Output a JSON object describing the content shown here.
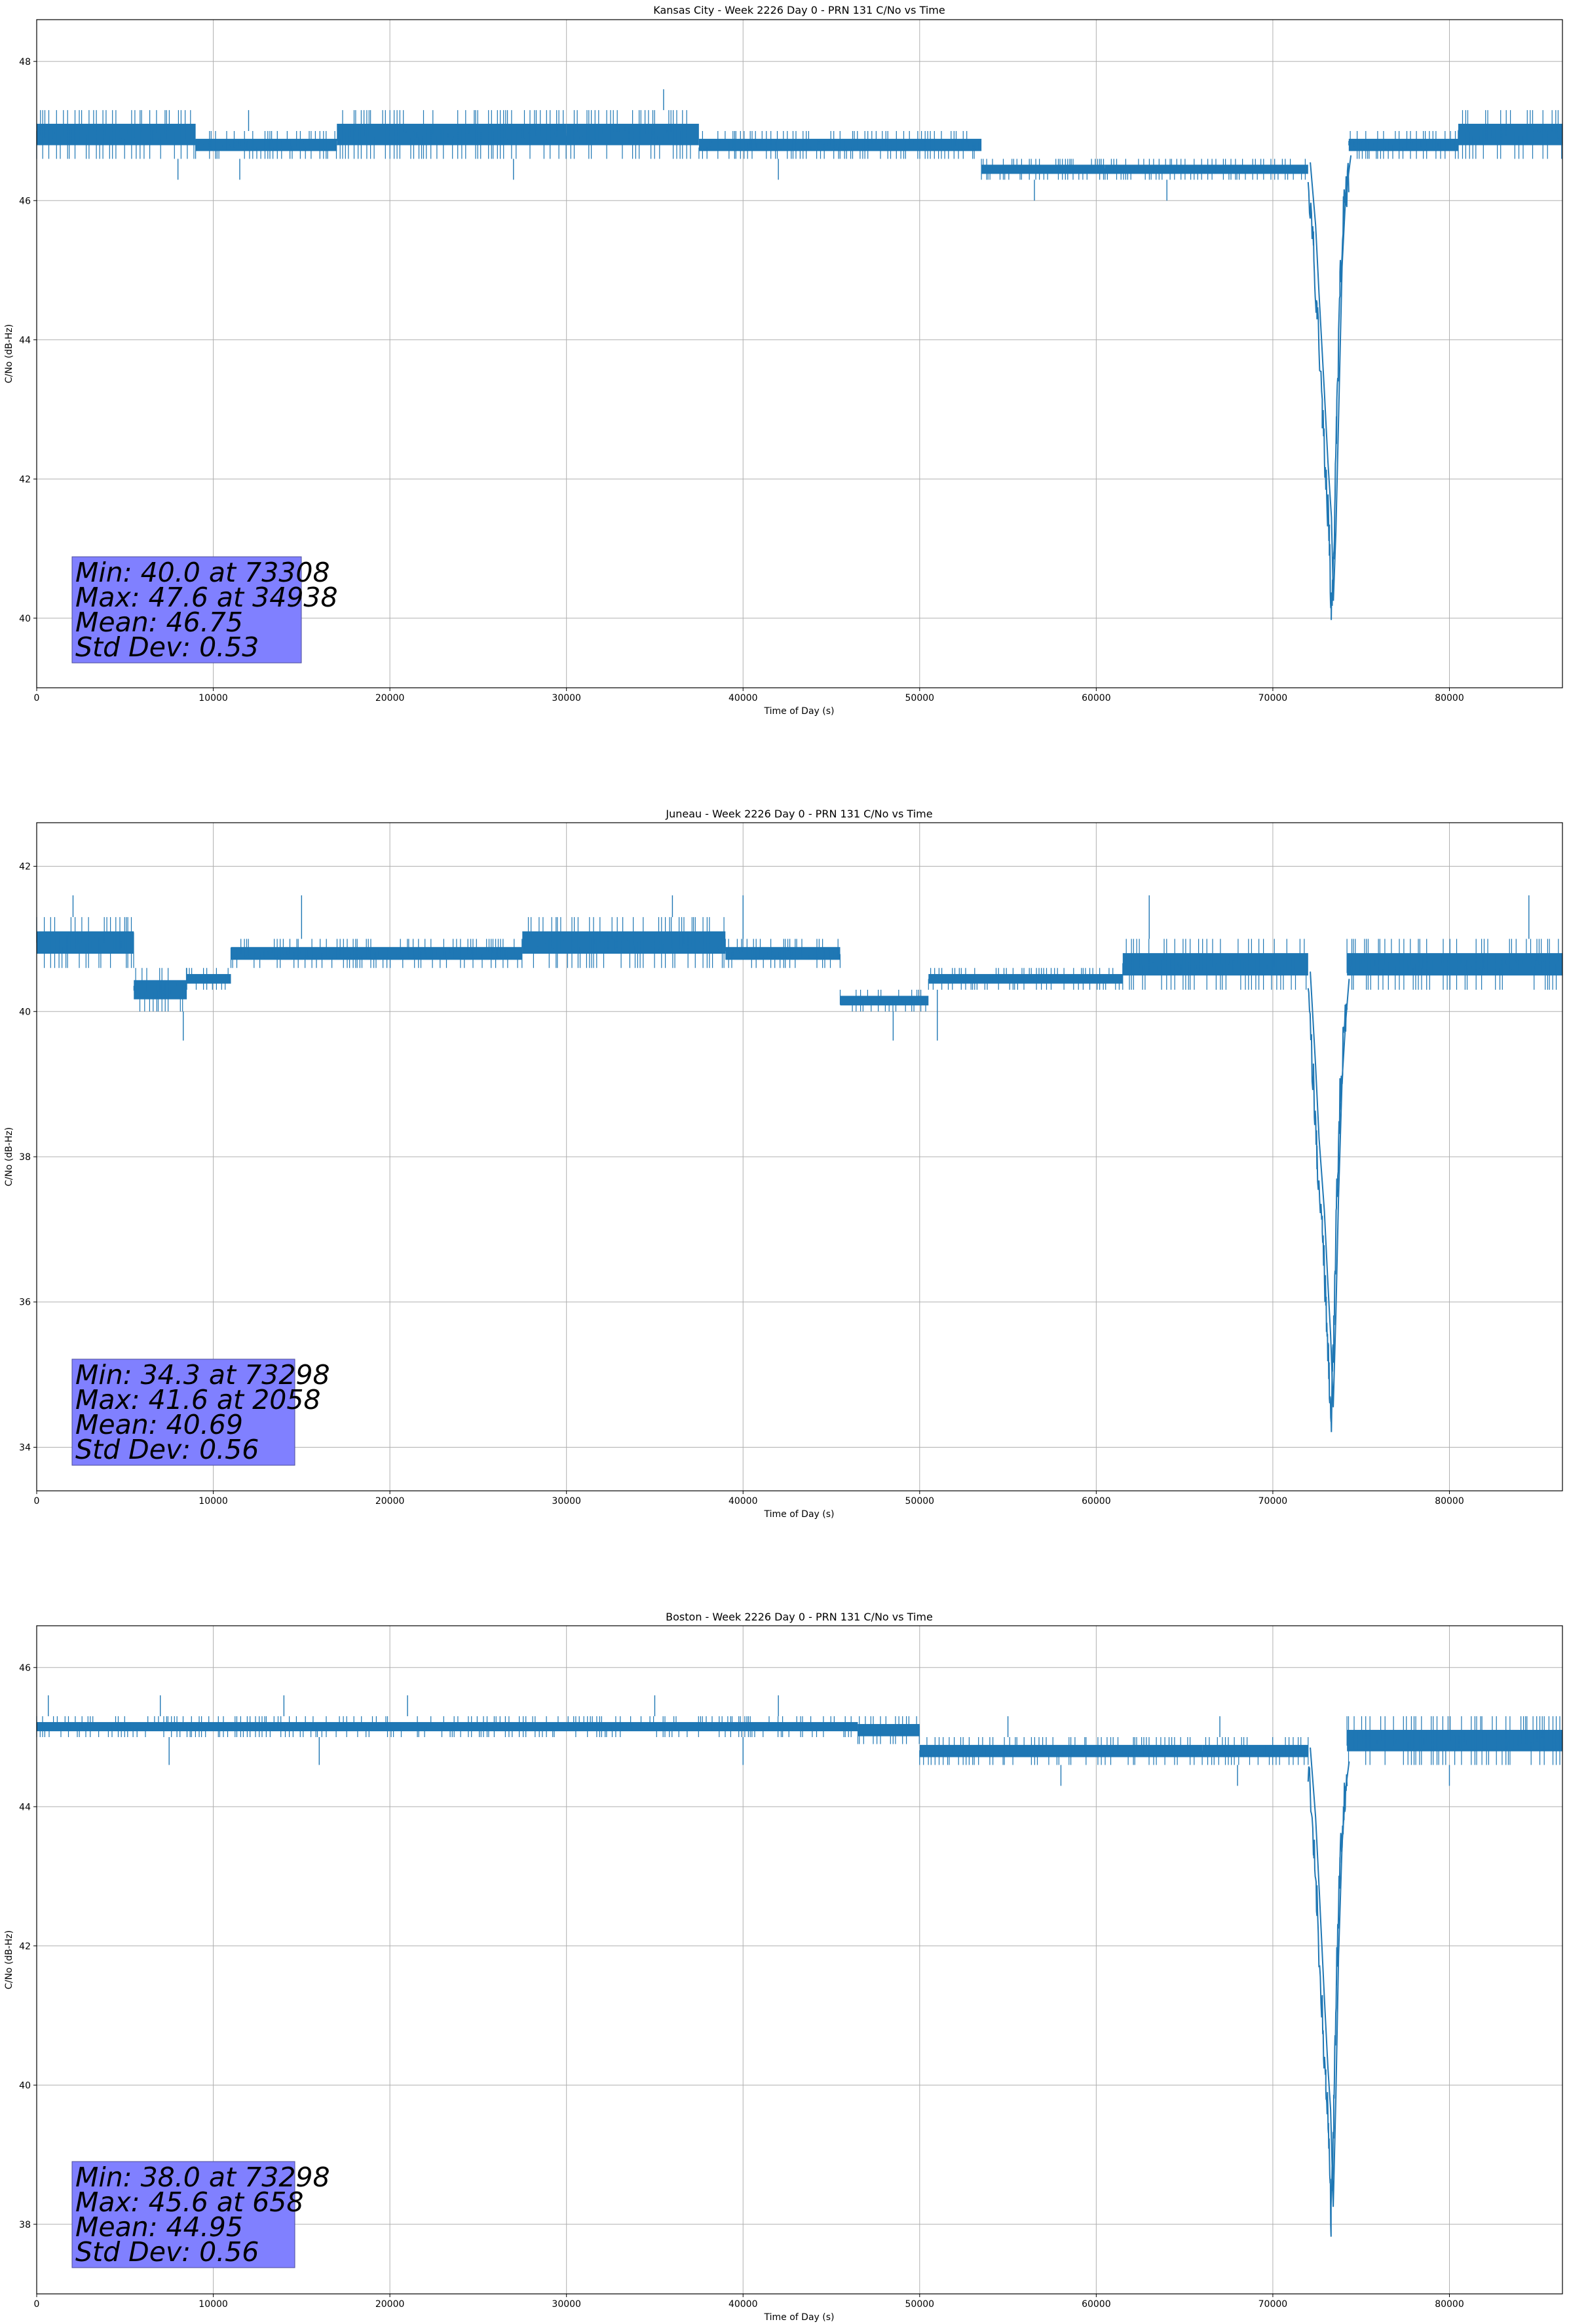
{
  "chart_data": [
    {
      "type": "line",
      "title": "Kansas City - Week 2226 Day 0 - PRN 131 C/No vs Time",
      "xlabel": "Time of Day (s)",
      "ylabel": "C/No (dB-Hz)",
      "xlim": [
        0,
        86400
      ],
      "ylim": [
        39.0,
        48.6
      ],
      "xticks": [
        "0",
        "10000",
        "20000",
        "30000",
        "40000",
        "50000",
        "60000",
        "70000",
        "80000"
      ],
      "yticks": [
        "40",
        "42",
        "44",
        "46",
        "48"
      ],
      "grid": true,
      "series_color": "#1f77b4",
      "stats": [
        "Min: 40.0 at 73308",
        "Max: 47.6 at 34938",
        "Mean: 46.75",
        "Std Dev: 0.53"
      ],
      "segments": [
        {
          "x0": 0,
          "x1": 9000,
          "lo": 46.6,
          "hi": 47.3
        },
        {
          "x0": 9000,
          "x1": 17000,
          "lo": 46.6,
          "hi": 47.0
        },
        {
          "x0": 17000,
          "x1": 30000,
          "lo": 46.6,
          "hi": 47.3
        },
        {
          "x0": 30000,
          "x1": 37500,
          "lo": 46.6,
          "hi": 47.3
        },
        {
          "x0": 37500,
          "x1": 53500,
          "lo": 46.6,
          "hi": 47.0
        },
        {
          "x0": 53500,
          "x1": 60500,
          "lo": 46.3,
          "hi": 46.6
        },
        {
          "x0": 60500,
          "x1": 72000,
          "lo": 46.3,
          "hi": 46.6
        },
        {
          "x0": 74300,
          "x1": 80500,
          "lo": 46.6,
          "hi": 47.0
        },
        {
          "x0": 80500,
          "x1": 86400,
          "lo": 46.6,
          "hi": 47.3
        }
      ],
      "dip": [
        [
          72000,
          46.3
        ],
        [
          72300,
          45.4
        ],
        [
          72500,
          44.4
        ],
        [
          72800,
          43.0
        ],
        [
          73000,
          42.0
        ],
        [
          73200,
          41.2
        ],
        [
          73308,
          40.0
        ],
        [
          73450,
          41.0
        ],
        [
          73600,
          42.6
        ],
        [
          73800,
          44.8
        ],
        [
          74000,
          45.8
        ],
        [
          74300,
          46.4
        ]
      ],
      "spikes_up": [
        [
          35500,
          47.6
        ],
        [
          33000,
          47.3
        ],
        [
          12000,
          47.3
        ]
      ],
      "spikes_down": [
        [
          8000,
          46.3
        ],
        [
          11500,
          46.3
        ],
        [
          27000,
          46.3
        ],
        [
          42000,
          46.3
        ],
        [
          56500,
          46.0
        ],
        [
          64000,
          46.0
        ]
      ]
    },
    {
      "type": "line",
      "title": "Juneau - Week 2226 Day 0 - PRN 131 C/No vs Time",
      "xlabel": "Time of Day (s)",
      "ylabel": "C/No (dB-Hz)",
      "xlim": [
        0,
        86400
      ],
      "ylim": [
        33.4,
        42.6
      ],
      "xticks": [
        "0",
        "10000",
        "20000",
        "30000",
        "40000",
        "50000",
        "60000",
        "70000",
        "80000"
      ],
      "yticks": [
        "34",
        "36",
        "38",
        "40",
        "42"
      ],
      "grid": true,
      "series_color": "#1f77b4",
      "stats": [
        "Min: 34.3 at 73298",
        "Max: 41.6 at 2058",
        "Mean: 40.69",
        "Std Dev: 0.56"
      ],
      "segments": [
        {
          "x0": 0,
          "x1": 5500,
          "lo": 40.6,
          "hi": 41.3
        },
        {
          "x0": 5500,
          "x1": 8500,
          "lo": 40.0,
          "hi": 40.6
        },
        {
          "x0": 8500,
          "x1": 11000,
          "lo": 40.3,
          "hi": 40.6
        },
        {
          "x0": 11000,
          "x1": 27500,
          "lo": 40.6,
          "hi": 41.0
        },
        {
          "x0": 27500,
          "x1": 39000,
          "lo": 40.6,
          "hi": 41.3
        },
        {
          "x0": 39000,
          "x1": 45500,
          "lo": 40.6,
          "hi": 41.0
        },
        {
          "x0": 45500,
          "x1": 50500,
          "lo": 40.0,
          "hi": 40.3
        },
        {
          "x0": 50500,
          "x1": 61500,
          "lo": 40.3,
          "hi": 40.6
        },
        {
          "x0": 61500,
          "x1": 72000,
          "lo": 40.3,
          "hi": 41.0
        },
        {
          "x0": 74200,
          "x1": 86400,
          "lo": 40.3,
          "hi": 41.0
        }
      ],
      "dip": [
        [
          72000,
          40.3
        ],
        [
          72300,
          39.0
        ],
        [
          72500,
          38.0
        ],
        [
          72800,
          37.0
        ],
        [
          73000,
          36.0
        ],
        [
          73150,
          35.3
        ],
        [
          73298,
          34.3
        ],
        [
          73450,
          35.6
        ],
        [
          73600,
          37.2
        ],
        [
          73800,
          38.8
        ],
        [
          74000,
          39.6
        ],
        [
          74200,
          40.2
        ]
      ],
      "spikes_up": [
        [
          2058,
          41.6
        ],
        [
          15000,
          41.6
        ],
        [
          36000,
          41.6
        ],
        [
          40000,
          41.6
        ],
        [
          63000,
          41.6
        ],
        [
          84500,
          41.6
        ]
      ],
      "spikes_down": [
        [
          8300,
          39.6
        ],
        [
          48500,
          39.6
        ],
        [
          51000,
          39.6
        ]
      ]
    },
    {
      "type": "line",
      "title": "Boston - Week 2226 Day 0 - PRN 131 C/No vs Time",
      "xlabel": "Time of Day (s)",
      "ylabel": "C/No (dB-Hz)",
      "xlim": [
        0,
        86400
      ],
      "ylim": [
        37.0,
        46.6
      ],
      "xticks": [
        "0",
        "10000",
        "20000",
        "30000",
        "40000",
        "50000",
        "60000",
        "70000",
        "80000"
      ],
      "yticks": [
        "38",
        "40",
        "42",
        "44",
        "46"
      ],
      "grid": true,
      "series_color": "#1f77b4",
      "stats": [
        "Min: 38.0 at 73298",
        "Max: 45.6 at 658",
        "Mean: 44.95",
        "Std Dev: 0.56"
      ],
      "segments": [
        {
          "x0": 0,
          "x1": 46500,
          "lo": 45.0,
          "hi": 45.3
        },
        {
          "x0": 46500,
          "x1": 50000,
          "lo": 44.9,
          "hi": 45.3
        },
        {
          "x0": 50000,
          "x1": 66000,
          "lo": 44.6,
          "hi": 45.0
        },
        {
          "x0": 66000,
          "x1": 72000,
          "lo": 44.6,
          "hi": 45.0
        },
        {
          "x0": 74200,
          "x1": 86400,
          "lo": 44.6,
          "hi": 45.3
        }
      ],
      "dip": [
        [
          72000,
          44.6
        ],
        [
          72300,
          43.6
        ],
        [
          72500,
          42.6
        ],
        [
          72800,
          41.0
        ],
        [
          73000,
          40.0
        ],
        [
          73150,
          39.4
        ],
        [
          73298,
          38.0
        ],
        [
          73450,
          39.6
        ],
        [
          73600,
          41.6
        ],
        [
          73800,
          43.2
        ],
        [
          74000,
          44.0
        ],
        [
          74200,
          44.4
        ]
      ],
      "spikes_up": [
        [
          658,
          45.6
        ],
        [
          7000,
          45.6
        ],
        [
          14000,
          45.6
        ],
        [
          21000,
          45.6
        ],
        [
          35000,
          45.6
        ],
        [
          42000,
          45.6
        ],
        [
          55000,
          45.3
        ],
        [
          67000,
          45.3
        ]
      ],
      "spikes_down": [
        [
          7500,
          44.6
        ],
        [
          16000,
          44.6
        ],
        [
          40000,
          44.6
        ],
        [
          58000,
          44.3
        ],
        [
          68000,
          44.3
        ],
        [
          80000,
          44.3
        ]
      ]
    }
  ]
}
